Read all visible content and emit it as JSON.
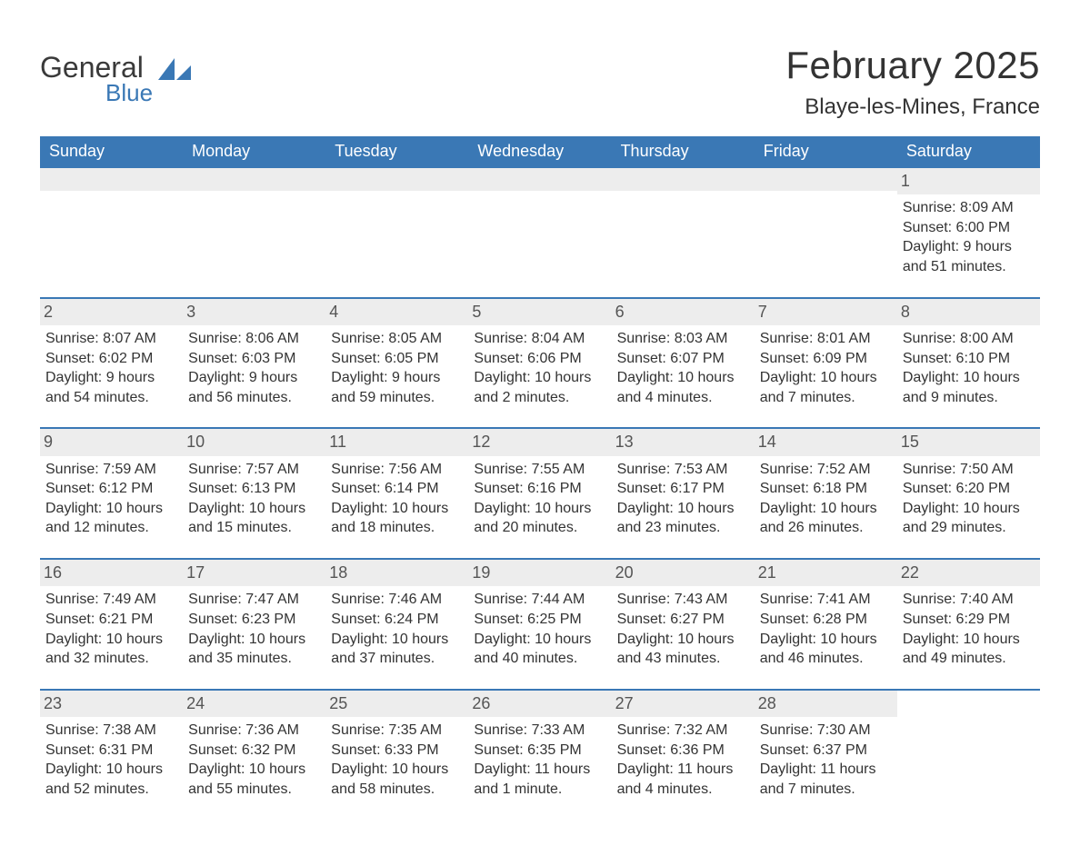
{
  "logo": {
    "word1": "General",
    "word2": "Blue",
    "sail_color": "#3a78b5",
    "text1_color": "#3a3a3a",
    "text2_color": "#3a78b5"
  },
  "title": "February 2025",
  "location": "Blaye-les-Mines, France",
  "colors": {
    "header_bg": "#3a78b5",
    "header_text": "#ffffff",
    "row_border": "#3a78b5",
    "daynum_bg": "#ededed",
    "daynum_text": "#555555",
    "body_text": "#333333",
    "page_bg": "#ffffff"
  },
  "typography": {
    "title_fontsize": 42,
    "location_fontsize": 24,
    "header_fontsize": 18,
    "daynum_fontsize": 18,
    "cell_fontsize": 16,
    "font_family": "Arial"
  },
  "weekdays": [
    "Sunday",
    "Monday",
    "Tuesday",
    "Wednesday",
    "Thursday",
    "Friday",
    "Saturday"
  ],
  "weeks": [
    [
      null,
      null,
      null,
      null,
      null,
      null,
      {
        "n": "1",
        "sunrise": "Sunrise: 8:09 AM",
        "sunset": "Sunset: 6:00 PM",
        "daylight1": "Daylight: 9 hours",
        "daylight2": "and 51 minutes."
      }
    ],
    [
      {
        "n": "2",
        "sunrise": "Sunrise: 8:07 AM",
        "sunset": "Sunset: 6:02 PM",
        "daylight1": "Daylight: 9 hours",
        "daylight2": "and 54 minutes."
      },
      {
        "n": "3",
        "sunrise": "Sunrise: 8:06 AM",
        "sunset": "Sunset: 6:03 PM",
        "daylight1": "Daylight: 9 hours",
        "daylight2": "and 56 minutes."
      },
      {
        "n": "4",
        "sunrise": "Sunrise: 8:05 AM",
        "sunset": "Sunset: 6:05 PM",
        "daylight1": "Daylight: 9 hours",
        "daylight2": "and 59 minutes."
      },
      {
        "n": "5",
        "sunrise": "Sunrise: 8:04 AM",
        "sunset": "Sunset: 6:06 PM",
        "daylight1": "Daylight: 10 hours",
        "daylight2": "and 2 minutes."
      },
      {
        "n": "6",
        "sunrise": "Sunrise: 8:03 AM",
        "sunset": "Sunset: 6:07 PM",
        "daylight1": "Daylight: 10 hours",
        "daylight2": "and 4 minutes."
      },
      {
        "n": "7",
        "sunrise": "Sunrise: 8:01 AM",
        "sunset": "Sunset: 6:09 PM",
        "daylight1": "Daylight: 10 hours",
        "daylight2": "and 7 minutes."
      },
      {
        "n": "8",
        "sunrise": "Sunrise: 8:00 AM",
        "sunset": "Sunset: 6:10 PM",
        "daylight1": "Daylight: 10 hours",
        "daylight2": "and 9 minutes."
      }
    ],
    [
      {
        "n": "9",
        "sunrise": "Sunrise: 7:59 AM",
        "sunset": "Sunset: 6:12 PM",
        "daylight1": "Daylight: 10 hours",
        "daylight2": "and 12 minutes."
      },
      {
        "n": "10",
        "sunrise": "Sunrise: 7:57 AM",
        "sunset": "Sunset: 6:13 PM",
        "daylight1": "Daylight: 10 hours",
        "daylight2": "and 15 minutes."
      },
      {
        "n": "11",
        "sunrise": "Sunrise: 7:56 AM",
        "sunset": "Sunset: 6:14 PM",
        "daylight1": "Daylight: 10 hours",
        "daylight2": "and 18 minutes."
      },
      {
        "n": "12",
        "sunrise": "Sunrise: 7:55 AM",
        "sunset": "Sunset: 6:16 PM",
        "daylight1": "Daylight: 10 hours",
        "daylight2": "and 20 minutes."
      },
      {
        "n": "13",
        "sunrise": "Sunrise: 7:53 AM",
        "sunset": "Sunset: 6:17 PM",
        "daylight1": "Daylight: 10 hours",
        "daylight2": "and 23 minutes."
      },
      {
        "n": "14",
        "sunrise": "Sunrise: 7:52 AM",
        "sunset": "Sunset: 6:18 PM",
        "daylight1": "Daylight: 10 hours",
        "daylight2": "and 26 minutes."
      },
      {
        "n": "15",
        "sunrise": "Sunrise: 7:50 AM",
        "sunset": "Sunset: 6:20 PM",
        "daylight1": "Daylight: 10 hours",
        "daylight2": "and 29 minutes."
      }
    ],
    [
      {
        "n": "16",
        "sunrise": "Sunrise: 7:49 AM",
        "sunset": "Sunset: 6:21 PM",
        "daylight1": "Daylight: 10 hours",
        "daylight2": "and 32 minutes."
      },
      {
        "n": "17",
        "sunrise": "Sunrise: 7:47 AM",
        "sunset": "Sunset: 6:23 PM",
        "daylight1": "Daylight: 10 hours",
        "daylight2": "and 35 minutes."
      },
      {
        "n": "18",
        "sunrise": "Sunrise: 7:46 AM",
        "sunset": "Sunset: 6:24 PM",
        "daylight1": "Daylight: 10 hours",
        "daylight2": "and 37 minutes."
      },
      {
        "n": "19",
        "sunrise": "Sunrise: 7:44 AM",
        "sunset": "Sunset: 6:25 PM",
        "daylight1": "Daylight: 10 hours",
        "daylight2": "and 40 minutes."
      },
      {
        "n": "20",
        "sunrise": "Sunrise: 7:43 AM",
        "sunset": "Sunset: 6:27 PM",
        "daylight1": "Daylight: 10 hours",
        "daylight2": "and 43 minutes."
      },
      {
        "n": "21",
        "sunrise": "Sunrise: 7:41 AM",
        "sunset": "Sunset: 6:28 PM",
        "daylight1": "Daylight: 10 hours",
        "daylight2": "and 46 minutes."
      },
      {
        "n": "22",
        "sunrise": "Sunrise: 7:40 AM",
        "sunset": "Sunset: 6:29 PM",
        "daylight1": "Daylight: 10 hours",
        "daylight2": "and 49 minutes."
      }
    ],
    [
      {
        "n": "23",
        "sunrise": "Sunrise: 7:38 AM",
        "sunset": "Sunset: 6:31 PM",
        "daylight1": "Daylight: 10 hours",
        "daylight2": "and 52 minutes."
      },
      {
        "n": "24",
        "sunrise": "Sunrise: 7:36 AM",
        "sunset": "Sunset: 6:32 PM",
        "daylight1": "Daylight: 10 hours",
        "daylight2": "and 55 minutes."
      },
      {
        "n": "25",
        "sunrise": "Sunrise: 7:35 AM",
        "sunset": "Sunset: 6:33 PM",
        "daylight1": "Daylight: 10 hours",
        "daylight2": "and 58 minutes."
      },
      {
        "n": "26",
        "sunrise": "Sunrise: 7:33 AM",
        "sunset": "Sunset: 6:35 PM",
        "daylight1": "Daylight: 11 hours",
        "daylight2": "and 1 minute."
      },
      {
        "n": "27",
        "sunrise": "Sunrise: 7:32 AM",
        "sunset": "Sunset: 6:36 PM",
        "daylight1": "Daylight: 11 hours",
        "daylight2": "and 4 minutes."
      },
      {
        "n": "28",
        "sunrise": "Sunrise: 7:30 AM",
        "sunset": "Sunset: 6:37 PM",
        "daylight1": "Daylight: 11 hours",
        "daylight2": "and 7 minutes."
      },
      null
    ]
  ]
}
